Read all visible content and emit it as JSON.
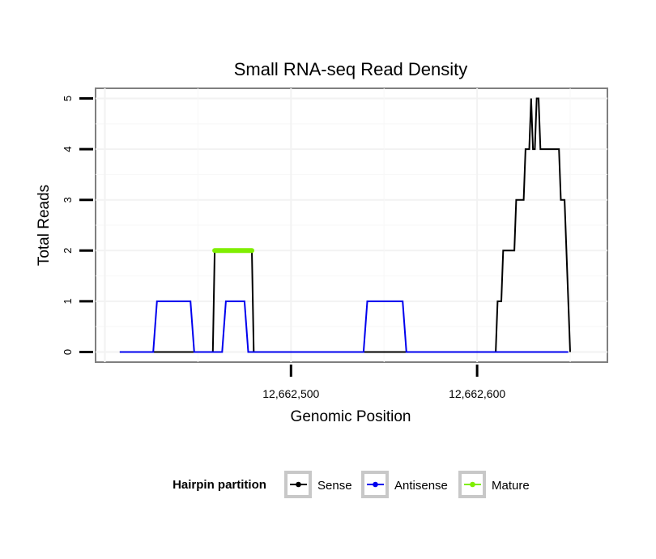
{
  "chart_data": {
    "type": "line",
    "title": "Small RNA-seq Read Density",
    "xlabel": "Genomic Position",
    "ylabel": "Total Reads",
    "xlim": [
      12662395,
      12662670
    ],
    "ylim": [
      -0.2,
      5.2
    ],
    "x_ticks": [
      12662500,
      12662600
    ],
    "x_tick_labels": [
      "12,662,500",
      "12,662,600"
    ],
    "y_ticks": [
      0,
      1,
      2,
      3,
      4,
      5
    ],
    "y_tick_labels": [
      "0",
      "1",
      "2",
      "3",
      "4",
      "5"
    ],
    "grid": true,
    "legend": {
      "title": "Hairpin partition",
      "position": "bottom",
      "entries": [
        "Sense",
        "Antisense",
        "Mature"
      ]
    },
    "series": [
      {
        "name": "Sense",
        "color": "#000000",
        "x": [
          12662408,
          12662458,
          12662459,
          12662479,
          12662480,
          12662610,
          12662611,
          12662613,
          12662614,
          12662620,
          12662621,
          12662625,
          12662626,
          12662628,
          12662629,
          12662630,
          12662631,
          12662632,
          12662633,
          12662634,
          12662635,
          12662636,
          12662637,
          12662644,
          12662645,
          12662647,
          12662648,
          12662650
        ],
        "y": [
          0,
          0,
          2,
          2,
          0,
          0,
          1,
          1,
          2,
          2,
          3,
          3,
          4,
          4,
          5,
          4,
          4,
          5,
          5,
          4,
          4,
          4,
          4,
          4,
          3,
          3,
          2,
          0
        ]
      },
      {
        "name": "Antisense",
        "color": "#0000ee",
        "x": [
          12662408,
          12662426,
          12662428,
          12662446,
          12662448,
          12662463,
          12662465,
          12662475,
          12662477,
          12662539,
          12662541,
          12662560,
          12662562,
          12662649
        ],
        "y": [
          0,
          0,
          1,
          1,
          0,
          0,
          1,
          1,
          0,
          0,
          1,
          1,
          0,
          0
        ]
      },
      {
        "name": "Mature",
        "color": "#7fee00",
        "x": [
          12662459,
          12662479
        ],
        "y": [
          2,
          2
        ]
      }
    ]
  }
}
